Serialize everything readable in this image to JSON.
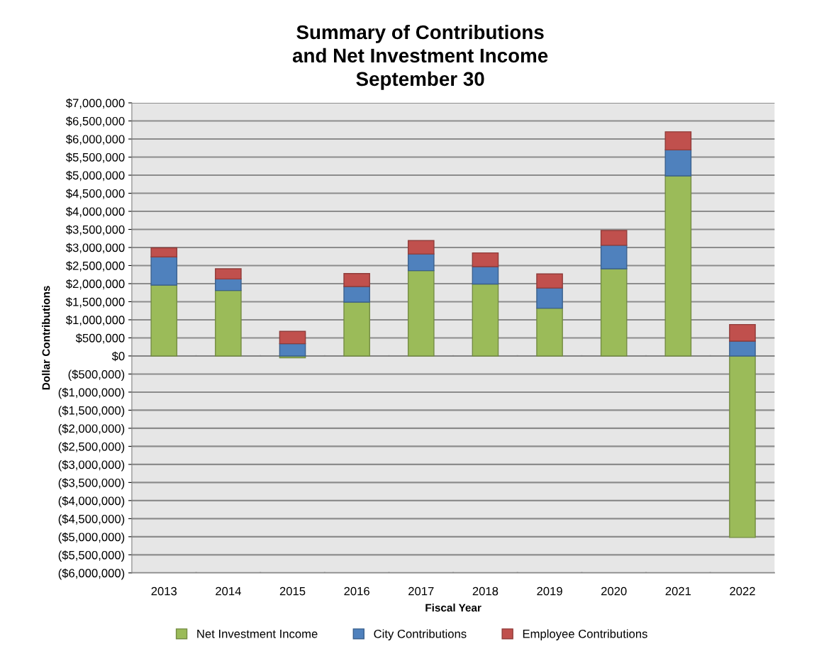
{
  "chart_data": {
    "type": "bar",
    "stacked": true,
    "title": "Summary of Contributions\nand Net Investment Income\nSeptember 30",
    "xlabel": "Fiscal Year",
    "ylabel": "Dollar Contributions",
    "categories": [
      "2013",
      "2014",
      "2015",
      "2016",
      "2017",
      "2018",
      "2019",
      "2020",
      "2021",
      "2022"
    ],
    "series": [
      {
        "name": "Net Investment Income",
        "color": "#9bbb59",
        "values": [
          1960000,
          1810000,
          -50000,
          1490000,
          2360000,
          1990000,
          1320000,
          2410000,
          4980000,
          -5020000
        ]
      },
      {
        "name": "City Contributions",
        "color": "#4f81bd",
        "values": [
          780000,
          320000,
          340000,
          430000,
          460000,
          480000,
          560000,
          650000,
          720000,
          410000
        ]
      },
      {
        "name": "Employee Contributions",
        "color": "#c0504d",
        "values": [
          250000,
          280000,
          340000,
          360000,
          370000,
          380000,
          390000,
          410000,
          500000,
          460000
        ]
      }
    ],
    "ylim": [
      -6000000,
      7000000
    ],
    "yticks": [
      {
        "value": -6000000,
        "label": "($6,000,000)"
      },
      {
        "value": -5500000,
        "label": "($5,500,000)"
      },
      {
        "value": -5000000,
        "label": "($5,000,000)"
      },
      {
        "value": -4500000,
        "label": "($4,500,000)"
      },
      {
        "value": -4000000,
        "label": "($4,000,000)"
      },
      {
        "value": -3500000,
        "label": "($3,500,000)"
      },
      {
        "value": -3000000,
        "label": "($3,000,000)"
      },
      {
        "value": -2500000,
        "label": "($2,500,000)"
      },
      {
        "value": -2000000,
        "label": "($2,000,000)"
      },
      {
        "value": -1500000,
        "label": "($1,500,000)"
      },
      {
        "value": -1000000,
        "label": "($1,000,000)"
      },
      {
        "value": -500000,
        "label": "($500,000)"
      },
      {
        "value": 0,
        "label": "$0"
      },
      {
        "value": 500000,
        "label": "$500,000"
      },
      {
        "value": 1000000,
        "label": "$1,000,000"
      },
      {
        "value": 1500000,
        "label": "$1,500,000"
      },
      {
        "value": 2000000,
        "label": "$2,000,000"
      },
      {
        "value": 2500000,
        "label": "$2,500,000"
      },
      {
        "value": 3000000,
        "label": "$3,000,000"
      },
      {
        "value": 3500000,
        "label": "$3,500,000"
      },
      {
        "value": 4000000,
        "label": "$4,000,000"
      },
      {
        "value": 4500000,
        "label": "$4,500,000"
      },
      {
        "value": 5000000,
        "label": "$5,000,000"
      },
      {
        "value": 5500000,
        "label": "$5,500,000"
      },
      {
        "value": 6000000,
        "label": "$6,000,000"
      },
      {
        "value": 6500000,
        "label": "$6,500,000"
      },
      {
        "value": 7000000,
        "label": "$7,000,000"
      }
    ],
    "grid": "y",
    "legend": "bottom"
  }
}
